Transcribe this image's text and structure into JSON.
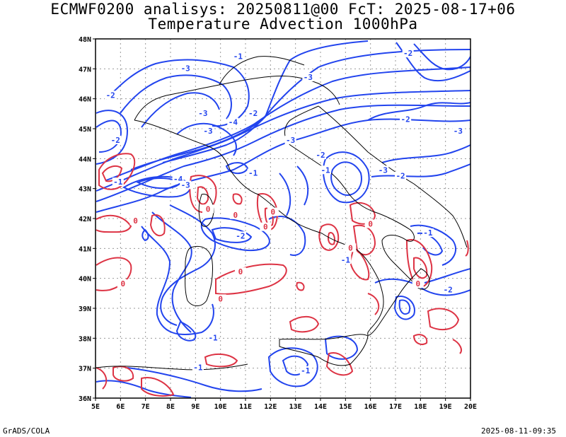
{
  "title_line1": "ECMWF0200 analisys: 20250811@00 FcT: 2025-08-17+06",
  "title_line2": "Temperature Advection 1000hPa",
  "footer_left": "GrADS/COLA",
  "footer_right": "2025-08-11-09:35",
  "colors": {
    "positive": "#dd3344",
    "negative": "#2244ee",
    "coast": "#000000",
    "grid": "#999999"
  },
  "map": {
    "lon_ticks": [
      "5E",
      "6E",
      "7E",
      "8E",
      "9E",
      "10E",
      "11E",
      "12E",
      "13E",
      "14E",
      "15E",
      "16E",
      "17E",
      "18E",
      "19E",
      "20E"
    ],
    "lat_ticks": [
      "36N",
      "37N",
      "38N",
      "39N",
      "40N",
      "41N",
      "42N",
      "43N",
      "44N",
      "45N",
      "46N",
      "47N",
      "48N"
    ],
    "gridlines": "dotted"
  },
  "contour_labels": [
    {
      "text": "-1",
      "lon": 10.7,
      "lat": 47.4,
      "sign": "neg"
    },
    {
      "text": "-2",
      "lon": 17.5,
      "lat": 47.5,
      "sign": "neg"
    },
    {
      "text": "-3",
      "lon": 8.6,
      "lat": 47.0,
      "sign": "neg"
    },
    {
      "text": "-3",
      "lon": 13.5,
      "lat": 46.7,
      "sign": "neg"
    },
    {
      "text": "-2",
      "lon": 5.6,
      "lat": 46.1,
      "sign": "neg"
    },
    {
      "text": "-3",
      "lon": 9.3,
      "lat": 45.5,
      "sign": "neg"
    },
    {
      "text": "-2",
      "lon": 11.3,
      "lat": 45.5,
      "sign": "neg"
    },
    {
      "text": "-4",
      "lon": 10.5,
      "lat": 45.2,
      "sign": "neg"
    },
    {
      "text": "-3",
      "lon": 9.5,
      "lat": 44.9,
      "sign": "neg"
    },
    {
      "text": "-2",
      "lon": 5.8,
      "lat": 44.6,
      "sign": "neg"
    },
    {
      "text": "-3",
      "lon": 12.8,
      "lat": 44.6,
      "sign": "neg"
    },
    {
      "text": "-2",
      "lon": 14.0,
      "lat": 44.1,
      "sign": "neg"
    },
    {
      "text": "-2",
      "lon": 17.4,
      "lat": 45.3,
      "sign": "neg"
    },
    {
      "text": "-3",
      "lon": 19.5,
      "lat": 44.9,
      "sign": "neg"
    },
    {
      "text": "-4",
      "lon": 8.3,
      "lat": 43.3,
      "sign": "neg"
    },
    {
      "text": "-3",
      "lon": 8.6,
      "lat": 43.1,
      "sign": "neg"
    },
    {
      "text": "-1",
      "lon": 5.9,
      "lat": 43.2,
      "sign": "neg"
    },
    {
      "text": "-1",
      "lon": 11.3,
      "lat": 43.5,
      "sign": "neg"
    },
    {
      "text": "-1",
      "lon": 14.2,
      "lat": 43.6,
      "sign": "neg"
    },
    {
      "text": "-3",
      "lon": 16.5,
      "lat": 43.6,
      "sign": "neg"
    },
    {
      "text": "-2",
      "lon": 17.2,
      "lat": 43.4,
      "sign": "neg"
    },
    {
      "text": "-2",
      "lon": 10.8,
      "lat": 41.4,
      "sign": "neg"
    },
    {
      "text": "-1",
      "lon": 18.3,
      "lat": 41.5,
      "sign": "neg"
    },
    {
      "text": "-1",
      "lon": 15.0,
      "lat": 40.6,
      "sign": "neg"
    },
    {
      "text": "-2",
      "lon": 19.1,
      "lat": 39.6,
      "sign": "neg"
    },
    {
      "text": "-1",
      "lon": 9.7,
      "lat": 38.0,
      "sign": "neg"
    },
    {
      "text": "-1",
      "lon": 13.4,
      "lat": 36.9,
      "sign": "neg"
    },
    {
      "text": "-1",
      "lon": 9.1,
      "lat": 37.0,
      "sign": "neg"
    },
    {
      "text": "0",
      "lon": 9.5,
      "lat": 42.3,
      "sign": "pos"
    },
    {
      "text": "0",
      "lon": 10.6,
      "lat": 42.1,
      "sign": "pos"
    },
    {
      "text": "0",
      "lon": 11.8,
      "lat": 41.7,
      "sign": "pos"
    },
    {
      "text": "0",
      "lon": 15.2,
      "lat": 41.0,
      "sign": "pos"
    },
    {
      "text": "0",
      "lon": 10.8,
      "lat": 40.2,
      "sign": "pos"
    },
    {
      "text": "0",
      "lon": 10.0,
      "lat": 39.3,
      "sign": "pos"
    },
    {
      "text": "0",
      "lon": 6.1,
      "lat": 39.8,
      "sign": "pos"
    },
    {
      "text": "0",
      "lon": 12.1,
      "lat": 42.2,
      "sign": "pos"
    },
    {
      "text": "0",
      "lon": 16.0,
      "lat": 41.8,
      "sign": "pos"
    },
    {
      "text": "0",
      "lon": 17.9,
      "lat": 39.8,
      "sign": "pos"
    },
    {
      "text": "0",
      "lon": 6.6,
      "lat": 41.9,
      "sign": "pos"
    }
  ]
}
